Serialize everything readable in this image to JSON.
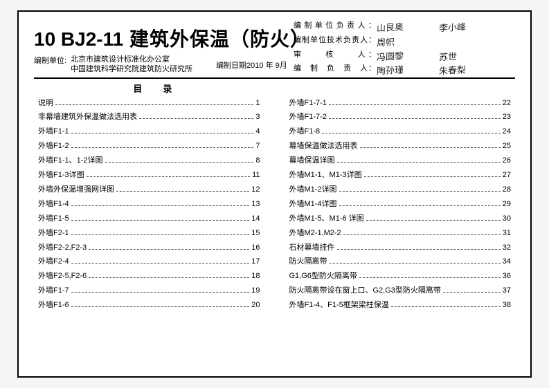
{
  "header": {
    "code": "10 BJ2-11",
    "title_cn": "建筑外保温（防火）",
    "org_label": "编制单位:",
    "org1": "北京市建筑设计标准化办公室",
    "org2": "中国建筑科学研究院建筑防火研究所",
    "date_label": "编制日期",
    "date_value": "2010 年 9月"
  },
  "signatures": {
    "rows": [
      {
        "label": "编制单位负责人：",
        "sig1": "山艮奥",
        "sig2": "李小峰"
      },
      {
        "label": "编制单位技术负责人：",
        "sig1": "周帜",
        "sig2": ""
      },
      {
        "label": "审　　核　　人：",
        "sig1": "冯圆黎",
        "sig2": "苏世"
      },
      {
        "label": "编　制　负　责　人：",
        "sig1": "陶孙瑾",
        "sig2": "朱春梨"
      }
    ]
  },
  "toc": {
    "heading": "目录",
    "left": [
      {
        "label": "说明",
        "page": "1"
      },
      {
        "label": "非幕墙建筑外保温做法选用表",
        "page": "3"
      },
      {
        "label": "外墙F1-1",
        "page": "4"
      },
      {
        "label": "外墙F1-2",
        "page": "7"
      },
      {
        "label": "外墙F1-1、1-2详图",
        "page": "8"
      },
      {
        "label": "外墙F1-3详图",
        "page": "11"
      },
      {
        "label": "外墙外保温增强网详图",
        "page": "12"
      },
      {
        "label": "外墙F1-4",
        "page": "13"
      },
      {
        "label": "外墙F1-5",
        "page": "14"
      },
      {
        "label": "外墙F2-1",
        "page": "15"
      },
      {
        "label": "外墙F2-2,F2-3",
        "page": "16"
      },
      {
        "label": "外墙F2-4",
        "page": "17"
      },
      {
        "label": "外墙F2-5,F2-6",
        "page": "18"
      },
      {
        "label": "外墙F1-7",
        "page": "19"
      },
      {
        "label": "外墙F1-6",
        "page": "20"
      }
    ],
    "right": [
      {
        "label": "外墙F1-7-1",
        "page": "22"
      },
      {
        "label": "外墙F1-7-2",
        "page": "23"
      },
      {
        "label": "外墙F1-8",
        "page": "24"
      },
      {
        "label": "幕墙保温做法选用表",
        "page": "25"
      },
      {
        "label": "幕墙保温详图",
        "page": "26"
      },
      {
        "label": "外墙M1-1、M1-3详图",
        "page": "27"
      },
      {
        "label": "外墙M1-2详图",
        "page": "28"
      },
      {
        "label": "外墙M1-4详图",
        "page": "29"
      },
      {
        "label": "外墙M1-5、M1-6 详图",
        "page": "30"
      },
      {
        "label": "外墙M2-1,M2-2",
        "page": "31"
      },
      {
        "label": "石材幕墙挂件",
        "page": "32"
      },
      {
        "label": "防火隔离带",
        "page": "34"
      },
      {
        "label": "G1,G6型防火隔离带",
        "page": "36"
      },
      {
        "label": "防火隔离带设在窗上口、G2,G3型防火隔离带",
        "page": "37"
      },
      {
        "label": "外墙F1-4、F1-5框架梁柱保温",
        "page": "38"
      }
    ]
  }
}
